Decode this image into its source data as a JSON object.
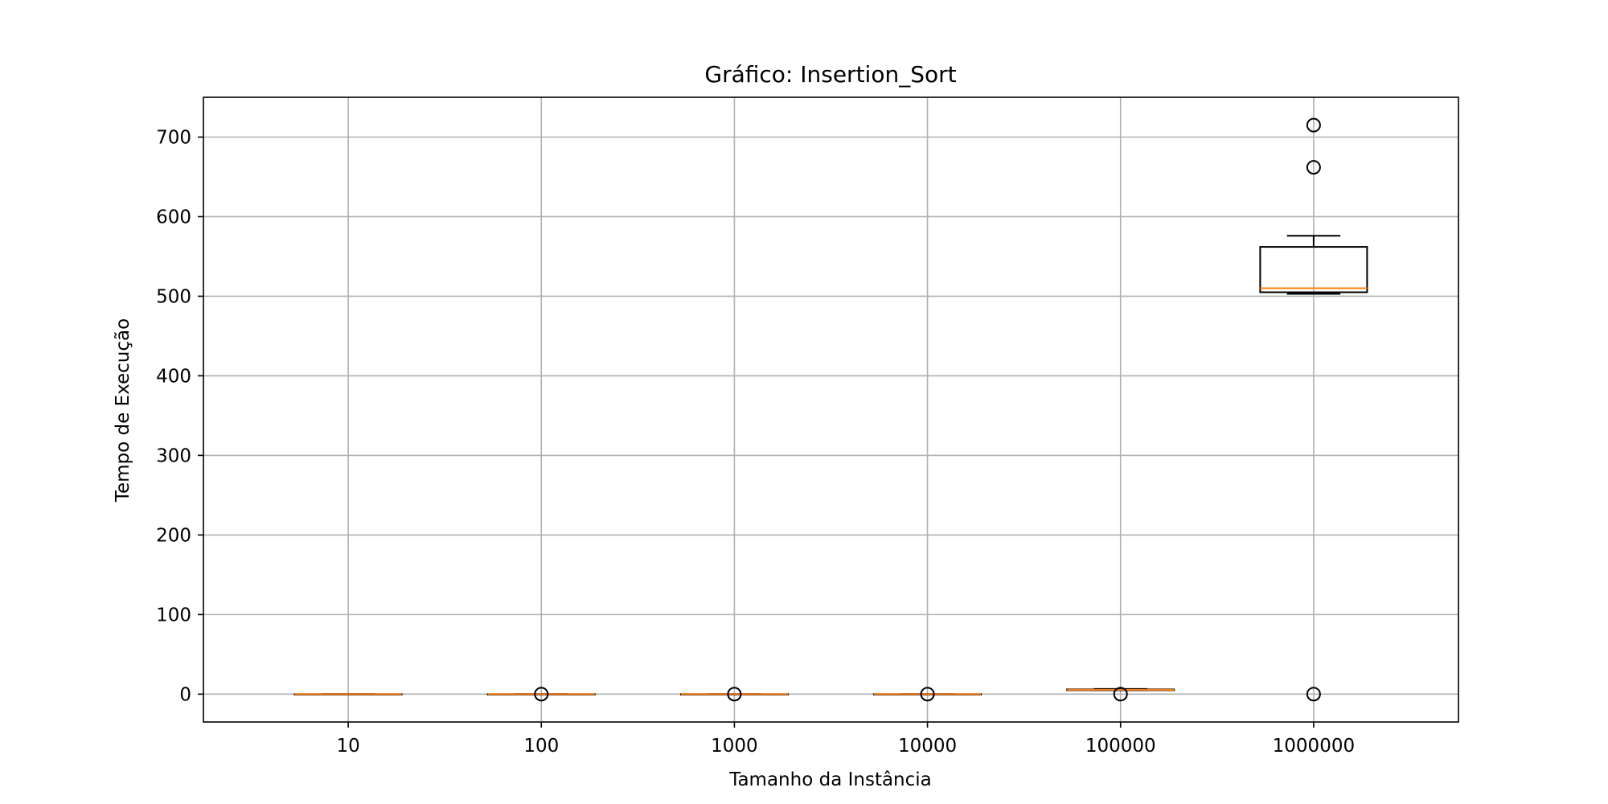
{
  "chart_data": {
    "type": "box",
    "title": "Gráfico: Insertion_Sort",
    "xlabel": "Tamanho da Instância",
    "ylabel": "Tempo de Execução",
    "categories": [
      "10",
      "100",
      "1000",
      "10000",
      "100000",
      "1000000"
    ],
    "ylim": [
      -35,
      750
    ],
    "yticks": [
      0,
      100,
      200,
      300,
      400,
      500,
      600,
      700
    ],
    "grid": true,
    "colors": {
      "box": "#000000",
      "median": "#ff7f0e",
      "grid": "#b0b0b0"
    },
    "boxes": [
      {
        "category": "10",
        "whislo": 0,
        "q1": 0,
        "med": 0,
        "q3": 0,
        "whishi": 0,
        "fliers": []
      },
      {
        "category": "100",
        "whislo": 0,
        "q1": 0,
        "med": 0,
        "q3": 0,
        "whishi": 0,
        "fliers": [
          0
        ]
      },
      {
        "category": "1000",
        "whislo": 0,
        "q1": 0,
        "med": 0,
        "q3": 0,
        "whishi": 0,
        "fliers": [
          0
        ]
      },
      {
        "category": "10000",
        "whislo": 0,
        "q1": 0,
        "med": 0,
        "q3": 0,
        "whishi": 0,
        "fliers": [
          0
        ]
      },
      {
        "category": "100000",
        "whislo": 5,
        "q1": 5,
        "med": 5.5,
        "q3": 6,
        "whishi": 6.5,
        "fliers": [
          0
        ]
      },
      {
        "category": "1000000",
        "whislo": 503,
        "q1": 505,
        "med": 510,
        "q3": 562,
        "whishi": 576,
        "fliers": [
          715,
          662,
          0
        ]
      }
    ]
  }
}
